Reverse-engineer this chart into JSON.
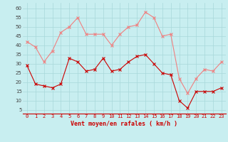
{
  "x": [
    0,
    1,
    2,
    3,
    4,
    5,
    6,
    7,
    8,
    9,
    10,
    11,
    12,
    13,
    14,
    15,
    16,
    17,
    18,
    19,
    20,
    21,
    22,
    23
  ],
  "wind_avg": [
    29,
    19,
    18,
    17,
    19,
    33,
    31,
    26,
    27,
    33,
    26,
    27,
    31,
    34,
    35,
    30,
    25,
    24,
    10,
    6,
    15,
    15,
    15,
    17
  ],
  "wind_gust": [
    42,
    39,
    31,
    37,
    47,
    50,
    55,
    46,
    46,
    46,
    40,
    46,
    50,
    51,
    58,
    55,
    45,
    46,
    22,
    14,
    22,
    27,
    26,
    31
  ],
  "color_avg": "#cc0000",
  "color_gust": "#f08080",
  "bg_color": "#c8eef0",
  "grid_color": "#a8d8da",
  "xlabel": "Vent moyen/en rafales ( km/h )",
  "xlabel_color": "#cc0000",
  "ylabel_ticks": [
    5,
    10,
    15,
    20,
    25,
    30,
    35,
    40,
    45,
    50,
    55,
    60
  ],
  "ylim": [
    3,
    63
  ],
  "xlim": [
    -0.5,
    23.5
  ],
  "tick_fontsize": 5.0,
  "xlabel_fontsize": 6.0
}
